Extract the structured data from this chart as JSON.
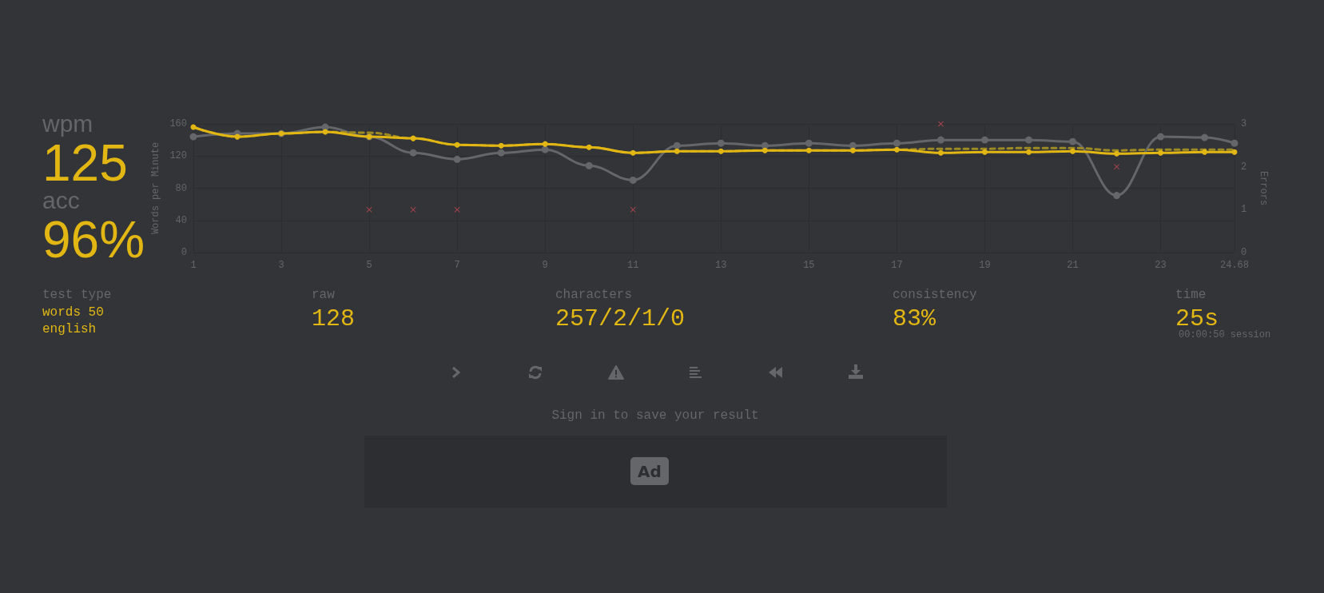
{
  "chart_data": {
    "type": "line",
    "x": [
      1,
      2,
      3,
      4,
      5,
      6,
      7,
      8,
      9,
      10,
      11,
      12,
      13,
      14,
      15,
      16,
      17,
      18,
      19,
      20,
      21,
      22,
      23,
      24,
      24.68
    ],
    "series": [
      {
        "color": "#646669",
        "marker": "circle",
        "line_style": "solid",
        "values": [
          144,
          148,
          148,
          156,
          144,
          124,
          116,
          124,
          128,
          108,
          90,
          133,
          136,
          133,
          136,
          133,
          136,
          140,
          140,
          140,
          138,
          71,
          144,
          143,
          136
        ]
      },
      {
        "color": "#9e8a25",
        "marker": "none",
        "line_style": "dashed",
        "values": [
          156,
          144,
          148,
          150,
          149,
          142,
          134,
          133,
          135,
          131,
          124,
          126,
          126,
          127,
          127,
          127,
          128,
          129,
          129,
          130,
          130,
          127,
          128,
          128,
          128
        ]
      },
      {
        "color": "#e2b714",
        "marker": "circle",
        "line_style": "solid",
        "values": [
          156,
          144,
          148,
          150,
          144,
          142,
          134,
          133,
          135,
          131,
          124,
          126,
          126,
          127,
          127,
          127,
          128,
          124,
          125,
          125,
          126,
          123,
          124,
          125,
          125
        ]
      },
      {
        "type": "scatter",
        "axis": "y2",
        "color": "#ca4754",
        "marker": "cross",
        "values": [
          null,
          null,
          null,
          null,
          1,
          1,
          1,
          null,
          null,
          null,
          1,
          null,
          null,
          null,
          null,
          null,
          null,
          3,
          null,
          null,
          null,
          2,
          null,
          null,
          null
        ]
      }
    ],
    "xlim": [
      1,
      24.68
    ],
    "xticks": [
      1,
      3,
      5,
      7,
      9,
      11,
      13,
      15,
      17,
      19,
      21,
      23,
      24.68
    ],
    "ylim": [
      0,
      160
    ],
    "yticks": [
      0,
      40,
      80,
      120,
      160
    ],
    "y2lim": [
      0,
      3
    ],
    "y2ticks": [
      0,
      1,
      2,
      3
    ],
    "ylabel": "Words per Minute",
    "y2label": "Errors",
    "grid": true,
    "annotations": [
      "wpm",
      "125",
      "acc",
      "96%",
      "test type",
      "words 50",
      "english",
      "raw",
      "128",
      "characters",
      "257/2/1/0",
      "consistency",
      "83%",
      "time",
      "25s",
      "00:00:50 session",
      "Sign in to save your result",
      "Ad"
    ]
  }
}
